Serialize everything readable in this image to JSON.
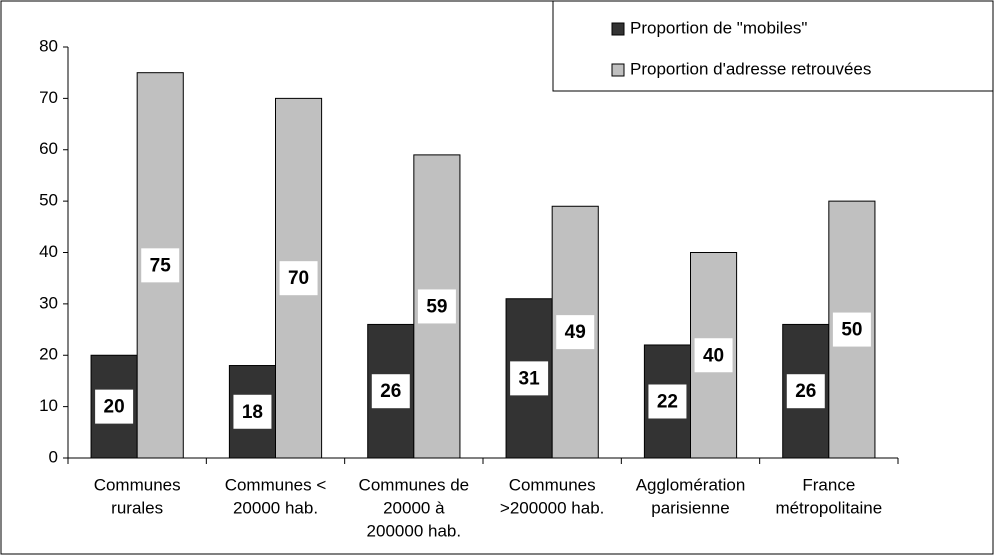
{
  "chart_data": {
    "type": "bar",
    "categories": [
      [
        "Communes",
        "rurales"
      ],
      [
        "Communes  <",
        "20000 hab."
      ],
      [
        "Communes de",
        "20000 à",
        "200000 hab."
      ],
      [
        "Communes",
        ">200000 hab."
      ],
      [
        "Agglomération",
        "parisienne"
      ],
      [
        "France",
        "métropolitaine"
      ]
    ],
    "series": [
      {
        "name": "Proportion de \"mobiles\"",
        "color": "#333333",
        "values": [
          20,
          18,
          26,
          31,
          22,
          26
        ]
      },
      {
        "name": "Proportion d'adresse retrouvées",
        "color": "#c0c0c0",
        "values": [
          75,
          70,
          59,
          49,
          40,
          50
        ]
      }
    ],
    "ylim": [
      0,
      80
    ],
    "yticks": [
      0,
      10,
      20,
      30,
      40,
      50,
      60,
      70,
      80
    ],
    "legend": "upper right"
  }
}
